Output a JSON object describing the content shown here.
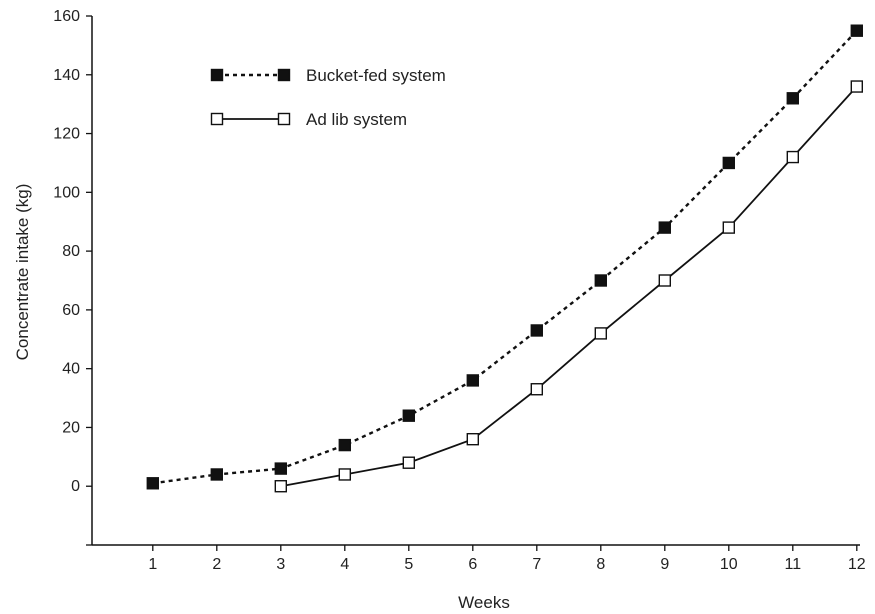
{
  "chart_data": {
    "type": "line",
    "title": "",
    "xlabel": "Weeks",
    "ylabel": "Concentrate intake (kg)",
    "xlim": [
      0.05,
      12.05
    ],
    "ylim": [
      -20,
      160
    ],
    "xticks": [
      1,
      2,
      3,
      4,
      5,
      6,
      7,
      8,
      9,
      10,
      11,
      12
    ],
    "yticks": [
      0,
      20,
      40,
      60,
      80,
      100,
      120,
      140,
      160
    ],
    "grid": false,
    "legend_position": "top-left",
    "series": [
      {
        "name": "Bucket-fed system",
        "line_style": "dotted",
        "marker": "filled-square",
        "color": "#111111",
        "x": [
          1,
          2,
          3,
          4,
          5,
          6,
          7,
          8,
          9,
          10,
          11,
          12
        ],
        "y": [
          1,
          4,
          6,
          14,
          24,
          36,
          53,
          70,
          88,
          110,
          132,
          155
        ]
      },
      {
        "name": "Ad lib system",
        "line_style": "solid",
        "marker": "open-square",
        "color": "#111111",
        "x": [
          3,
          4,
          5,
          6,
          7,
          8,
          9,
          10,
          11,
          12
        ],
        "y": [
          0,
          4,
          8,
          16,
          33,
          52,
          70,
          88,
          112,
          136
        ]
      }
    ]
  }
}
